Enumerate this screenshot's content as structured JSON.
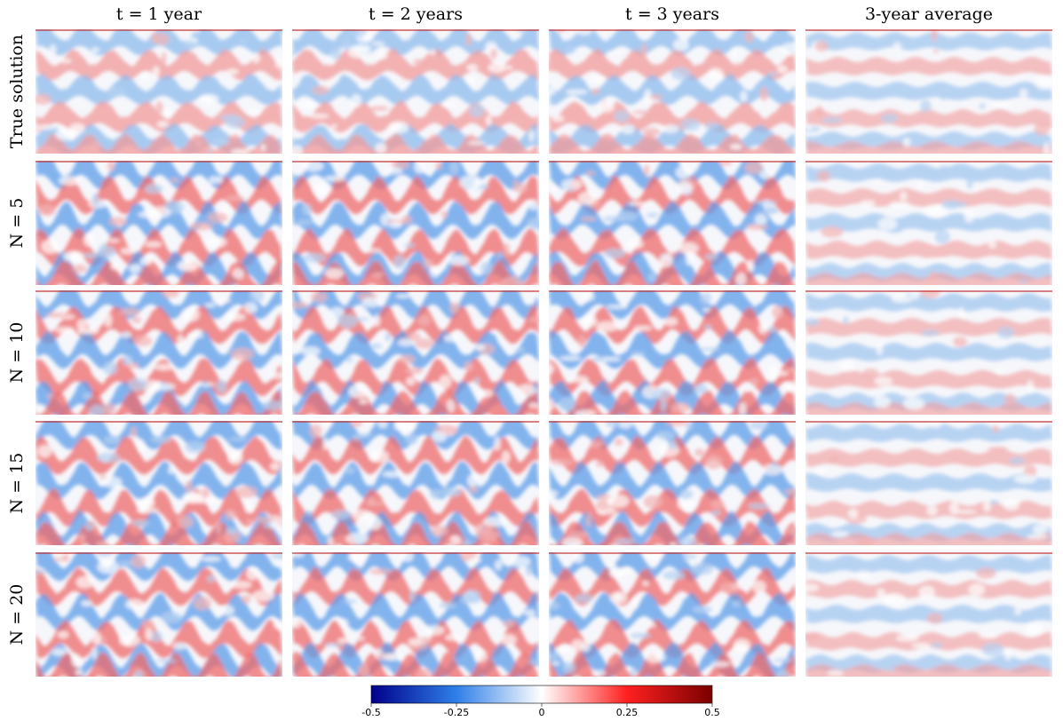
{
  "column_titles": [
    "t = 1 year",
    "t = 2 years",
    "t = 3 years",
    "3-year average"
  ],
  "row_labels": [
    "True solution",
    "N = 5",
    "N = 10",
    "N = 15",
    "N = 20"
  ],
  "colorbar": {
    "lim": [
      -0.5,
      0.5
    ],
    "ticks": [
      -0.5,
      -0.25,
      0,
      0.25,
      0.5
    ]
  }
}
